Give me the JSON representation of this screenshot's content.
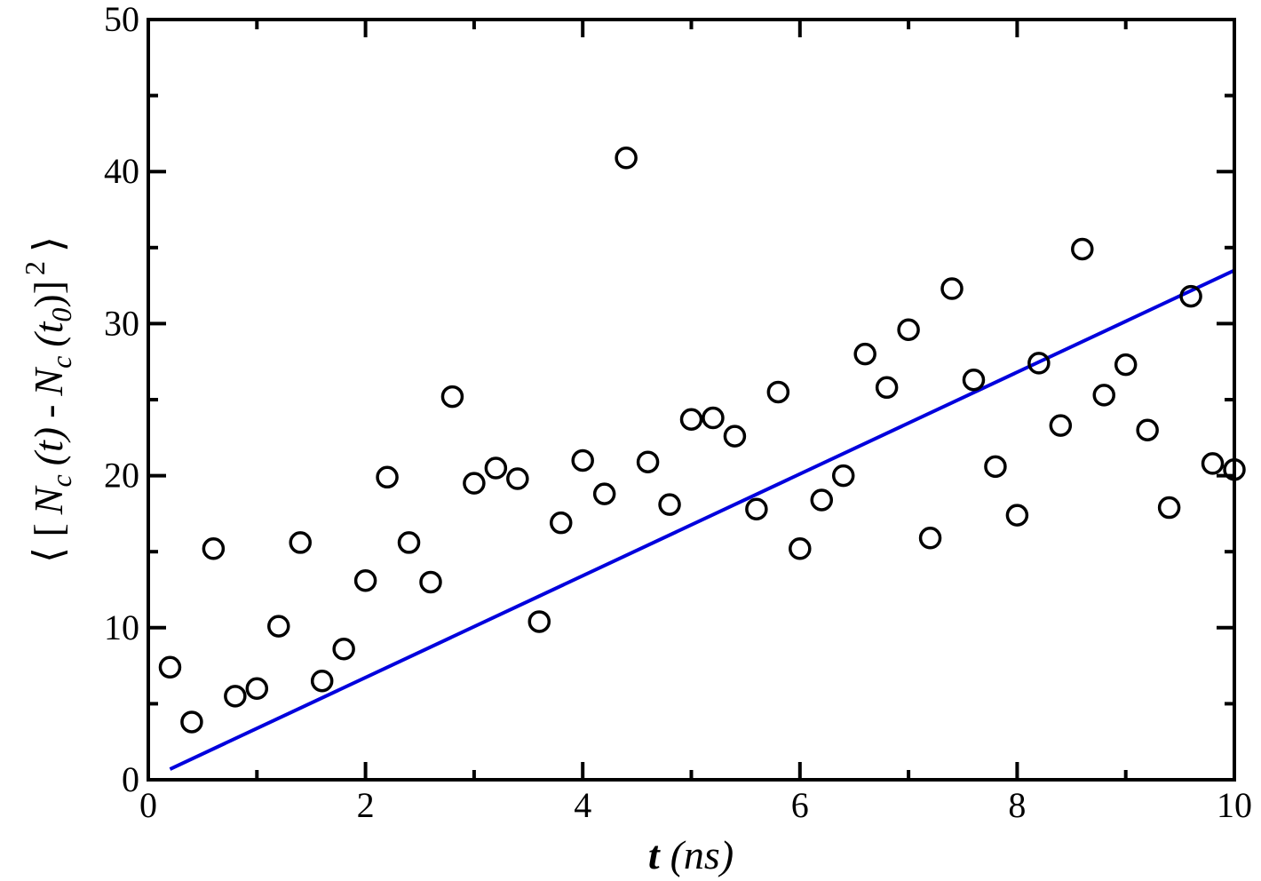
{
  "chart_data": {
    "type": "scatter",
    "title": "",
    "xlabel": {
      "var": "t",
      "unit": "(ns)"
    },
    "ylabel": {
      "lbracket": "⟨ [",
      "n1": "N",
      "n1_sub": "c",
      "arg1": "(t)",
      "minus": "-",
      "n2": "N",
      "n2_sub": "c",
      "arg2_open": "(t",
      "arg2_sub": "0",
      "arg2_close": ")]",
      "power": "2",
      "rbracket": "⟩"
    },
    "xlim": [
      0,
      10
    ],
    "ylim": [
      0,
      50
    ],
    "xticks": [
      "0",
      "2",
      "4",
      "6",
      "8",
      "10"
    ],
    "yticks": [
      "0",
      "10",
      "20",
      "30",
      "40",
      "50"
    ],
    "grid": false,
    "marker": "open-circle",
    "marker_color": "#000000",
    "series": [
      {
        "x": [
          0.2,
          0.4,
          0.6,
          0.8,
          1.0,
          1.2,
          1.4,
          1.6,
          1.8,
          2.0,
          2.2,
          2.4,
          2.6,
          2.8,
          3.0,
          3.2,
          3.4,
          3.6,
          3.8,
          4.0,
          4.2,
          4.4,
          4.6,
          4.8,
          5.0,
          5.2,
          5.4,
          5.6,
          5.8,
          6.0,
          6.2,
          6.4,
          6.6,
          6.8,
          7.0,
          7.2,
          7.4,
          7.6,
          7.8,
          8.0,
          8.2,
          8.4,
          8.6,
          8.8,
          9.0,
          9.2,
          9.4,
          9.6,
          9.8,
          10.0
        ],
        "y": [
          7.4,
          3.8,
          15.2,
          5.5,
          6.0,
          10.1,
          15.6,
          6.5,
          8.6,
          13.1,
          19.9,
          15.6,
          13.0,
          25.2,
          19.5,
          20.5,
          19.8,
          10.4,
          16.9,
          21.0,
          18.8,
          40.9,
          20.9,
          18.1,
          23.7,
          23.8,
          22.6,
          17.8,
          25.5,
          15.2,
          18.4,
          20.0,
          28.0,
          25.8,
          29.6,
          15.9,
          32.3,
          26.3,
          20.6,
          17.4,
          27.4,
          23.3,
          34.9,
          25.3,
          27.3,
          23.0,
          17.9,
          31.8,
          20.8,
          20.4
        ]
      }
    ],
    "fit_line": {
      "color": "#0000dd",
      "x": [
        0.2,
        10.0
      ],
      "y": [
        0.7,
        33.5
      ]
    }
  }
}
